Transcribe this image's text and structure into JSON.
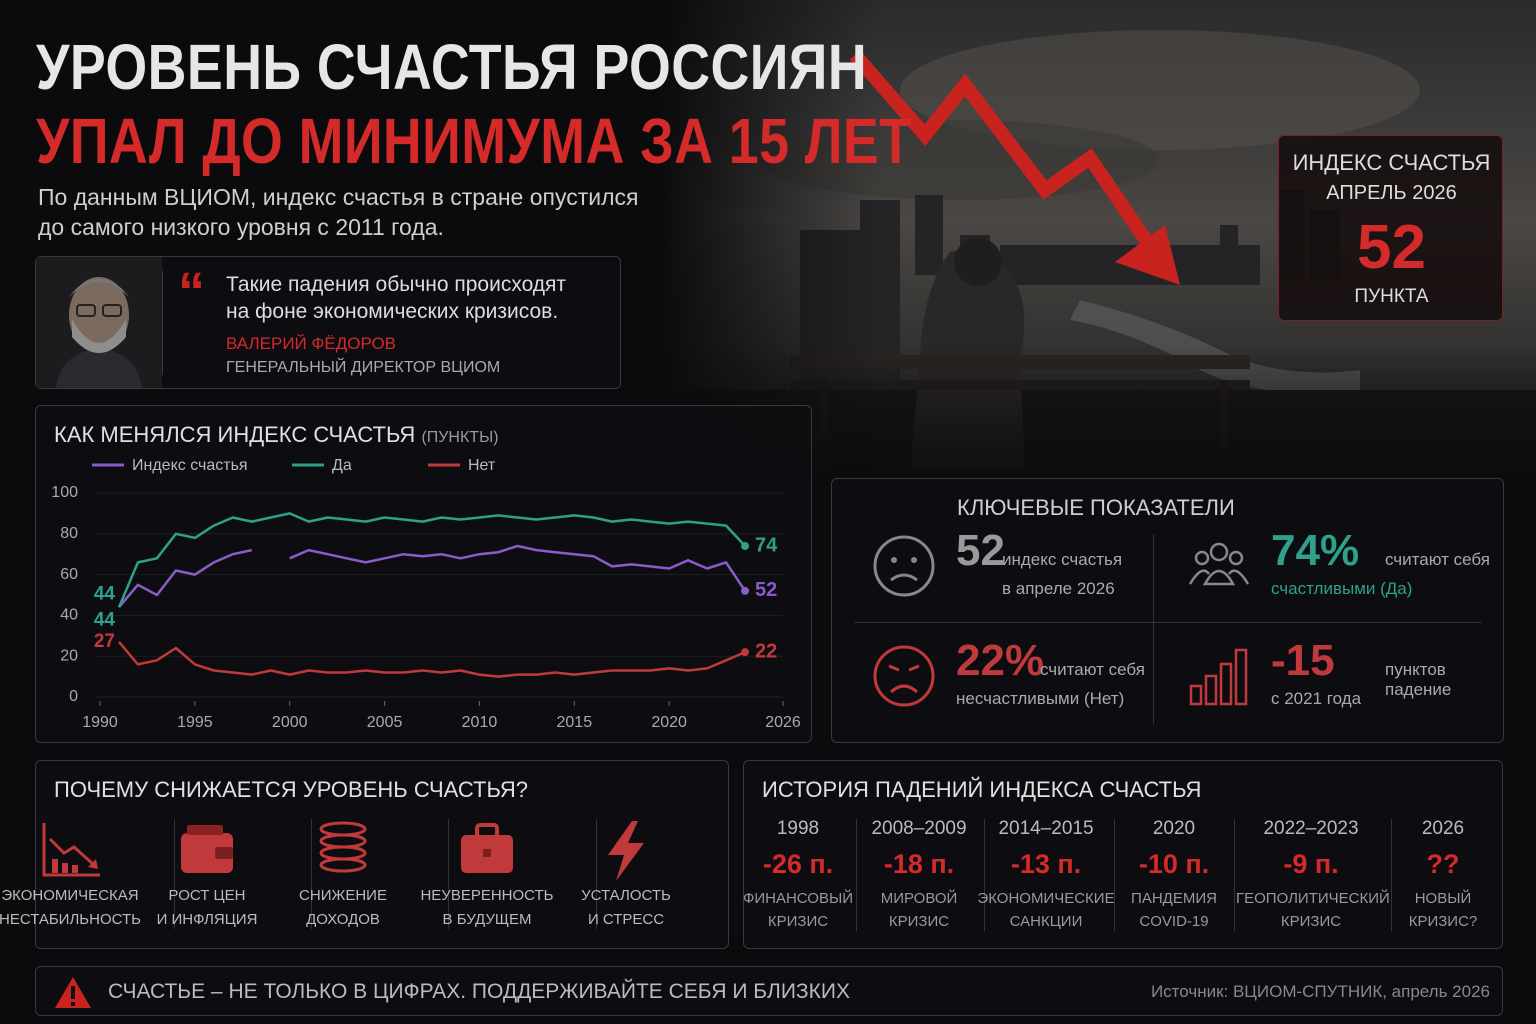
{
  "header": {
    "title_line1": "УРОВЕНЬ СЧАСТЬЯ РОССИЯН",
    "title_line2": "УПАЛ ДО МИНИМУМА ЗА 15 ЛЕТ",
    "subtitle_line1": "По данным ВЦИОМ, индекс счастья в стране опустился",
    "subtitle_line2": "до самого низкого уровня с 2011 года."
  },
  "quote": {
    "text_line1": "Такие падения обычно происходят",
    "text_line2": "на фоне экономических кризисов.",
    "author": "ВАЛЕРИЙ ФЁДОРОВ",
    "role": "ГЕНЕРАЛЬНЫЙ ДИРЕКТОР ВЦИОМ"
  },
  "badge": {
    "title_line1": "ИНДЕКС СЧАСТЬЯ",
    "title_line2": "АПРЕЛЬ 2026",
    "value": "52",
    "unit": "ПУНКТА"
  },
  "chart_data": {
    "type": "line",
    "title": "КАК МЕНЯЛСЯ ИНДЕКС СЧАСТЬЯ",
    "unit": "(ПУНКТЫ)",
    "x": [
      1991,
      1992,
      1993,
      1994,
      1995,
      1996,
      1997,
      1998,
      1999,
      2000,
      2001,
      2002,
      2003,
      2004,
      2005,
      2006,
      2007,
      2008,
      2009,
      2010,
      2011,
      2012,
      2013,
      2014,
      2015,
      2016,
      2017,
      2018,
      2019,
      2020,
      2021,
      2022,
      2023,
      2024
    ],
    "series": [
      {
        "name": "Индекс счастья",
        "color": "#8a5cc8",
        "values": [
          44,
          55,
          50,
          62,
          60,
          66,
          70,
          72,
          null,
          68,
          72,
          70,
          68,
          66,
          68,
          70,
          69,
          70,
          68,
          70,
          71,
          74,
          72,
          71,
          70,
          69,
          64,
          65,
          64,
          63,
          67,
          63,
          66,
          52
        ]
      },
      {
        "name": "Да",
        "color": "#2fa08c",
        "values": [
          44,
          66,
          68,
          80,
          78,
          84,
          88,
          86,
          88,
          90,
          86,
          88,
          87,
          86,
          88,
          87,
          86,
          88,
          87,
          88,
          89,
          88,
          87,
          88,
          89,
          88,
          86,
          87,
          86,
          85,
          86,
          85,
          84,
          74
        ]
      },
      {
        "name": "Нет",
        "color": "#c0393b",
        "values": [
          27,
          16,
          18,
          24,
          16,
          13,
          12,
          11,
          13,
          11,
          13,
          12,
          12,
          13,
          12,
          12,
          13,
          12,
          13,
          11,
          10,
          11,
          11,
          12,
          11,
          12,
          13,
          13,
          13,
          14,
          13,
          14,
          18,
          22
        ]
      }
    ],
    "xlim": [
      1990,
      2026
    ],
    "xticks": [
      1990,
      1995,
      2000,
      2005,
      2010,
      2015,
      2020,
      2026
    ],
    "ylim": [
      0,
      100
    ],
    "yticks": [
      0,
      20,
      40,
      60,
      80,
      100
    ]
  },
  "key_metrics": {
    "title": "КЛЮЧЕВЫЕ ПОКАЗАТЕЛИ",
    "items": [
      {
        "value": "52",
        "line1": "индекс счастья",
        "line2": "в апреле 2026"
      },
      {
        "value": "74%",
        "line1": "считают себя",
        "line2": "счастливыми (Да)"
      },
      {
        "value": "22%",
        "line1": "считают себя",
        "line2": "несчастливыми (Нет)"
      },
      {
        "value": "-15",
        "line1": "пунктов падение",
        "line2": "с 2021 года"
      }
    ]
  },
  "reasons": {
    "title": "ПОЧЕМУ СНИЖАЕТСЯ УРОВЕНЬ СЧАСТЬЯ?",
    "items": [
      {
        "line1": "ЭКОНОМИЧЕСКАЯ",
        "line2": "НЕСТАБИЛЬНОСТЬ"
      },
      {
        "line1": "РОСТ ЦЕН",
        "line2": "И ИНФЛЯЦИЯ"
      },
      {
        "line1": "СНИЖЕНИЕ",
        "line2": "ДОХОДОВ"
      },
      {
        "line1": "НЕУВЕРЕННОСТЬ",
        "line2": "В БУДУЩЕМ"
      },
      {
        "line1": "УСТАЛОСТЬ",
        "line2": "И СТРЕСС"
      }
    ]
  },
  "history": {
    "title": "ИСТОРИЯ ПАДЕНИЙ ИНДЕКСА СЧАСТЬЯ",
    "items": [
      {
        "period": "1998",
        "value": "-26 п.",
        "line1": "ФИНАНСОВЫЙ",
        "line2": "КРИЗИС"
      },
      {
        "period": "2008–2009",
        "value": "-18 п.",
        "line1": "МИРОВОЙ",
        "line2": "КРИЗИС"
      },
      {
        "period": "2014–2015",
        "value": "-13 п.",
        "line1": "ЭКОНОМИЧЕСКИЕ",
        "line2": "САНКЦИИ"
      },
      {
        "period": "2020",
        "value": "-10 п.",
        "line1": "ПАНДЕМИЯ",
        "line2": "COVID-19"
      },
      {
        "period": "2022–2023",
        "value": "-9 п.",
        "line1": "ГЕОПОЛИТИЧЕСКИЙ",
        "line2": "КРИЗИС"
      },
      {
        "period": "2026",
        "value": "??",
        "line1": "НОВЫЙ",
        "line2": "КРИЗИС?"
      }
    ]
  },
  "footer": {
    "message": "СЧАСТЬЕ – НЕ ТОЛЬКО В ЦИФРАХ. ПОДДЕРЖИВАЙТЕ СЕБЯ И БЛИЗКИХ",
    "source": "Источник: ВЦИОМ-СПУТНИК, апрель 2026"
  }
}
